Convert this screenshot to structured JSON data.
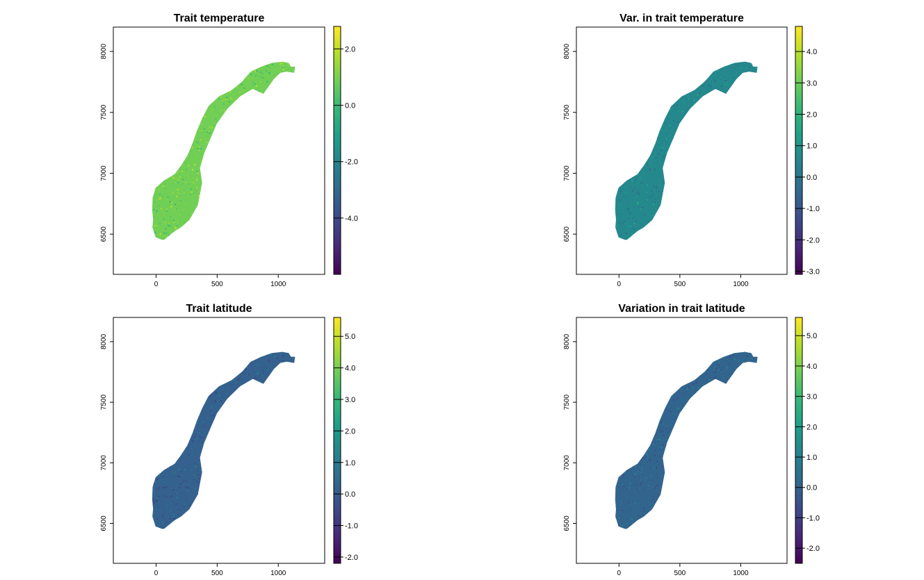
{
  "figure": {
    "viridis": [
      "#440154",
      "#482878",
      "#3e4a89",
      "#31688e",
      "#26828e",
      "#1f9e89",
      "#35b779",
      "#6ece58",
      "#b5de2b",
      "#fde725"
    ]
  },
  "chart_data": [
    {
      "type": "heatmap",
      "title": "Trait temperature",
      "xlabel": "",
      "ylabel": "",
      "xlim": [
        -350,
        1380
      ],
      "ylim": [
        6170,
        8200
      ],
      "x_ticks": [
        "0",
        "500",
        "1000"
      ],
      "y_ticks": [
        "6500",
        "7000",
        "7500",
        "8000"
      ],
      "colorbar": {
        "range": [
          -6.0,
          2.8
        ],
        "ticks": [
          "2.0",
          "0.0",
          "-2.0",
          "-4.0"
        ],
        "tick_values": [
          2,
          0,
          -2,
          -4
        ]
      },
      "dominant_value": 0.9
    },
    {
      "type": "heatmap",
      "title": "Var. in trait temperature",
      "xlabel": "",
      "ylabel": "",
      "xlim": [
        -350,
        1380
      ],
      "ylim": [
        6170,
        8200
      ],
      "x_ticks": [
        "0",
        "500",
        "1000"
      ],
      "y_ticks": [
        "6500",
        "7000",
        "7500",
        "8000"
      ],
      "colorbar": {
        "range": [
          -3.1,
          4.8
        ],
        "ticks": [
          "4.0",
          "3.0",
          "2.0",
          "1.0",
          "0.0",
          "-1.0",
          "-2.0",
          "-3.0"
        ],
        "tick_values": [
          4,
          3,
          2,
          1,
          0,
          -1,
          -2,
          -3
        ]
      },
      "dominant_value": 0.6
    },
    {
      "type": "heatmap",
      "title": "Trait latitude",
      "xlabel": "",
      "ylabel": "",
      "xlim": [
        -350,
        1380
      ],
      "ylim": [
        6170,
        8200
      ],
      "x_ticks": [
        "0",
        "500",
        "1000"
      ],
      "y_ticks": [
        "6500",
        "7000",
        "7500",
        "8000"
      ],
      "colorbar": {
        "range": [
          -2.2,
          5.6
        ],
        "ticks": [
          "5.0",
          "4.0",
          "3.0",
          "2.0",
          "1.0",
          "0.0",
          "-1.0",
          "-2.0"
        ],
        "tick_values": [
          5,
          4,
          3,
          2,
          1,
          0,
          -1,
          -2
        ]
      },
      "dominant_value": 0.2
    },
    {
      "type": "heatmap",
      "title": "Variation in trait latitude",
      "xlabel": "",
      "ylabel": "",
      "xlim": [
        -350,
        1380
      ],
      "ylim": [
        6170,
        8200
      ],
      "x_ticks": [
        "0",
        "500",
        "1000"
      ],
      "y_ticks": [
        "6500",
        "7000",
        "7500",
        "8000"
      ],
      "colorbar": {
        "range": [
          -2.5,
          5.6
        ],
        "ticks": [
          "5.0",
          "4.0",
          "3.0",
          "2.0",
          "1.0",
          "0.0",
          "-1.0",
          "-2.0"
        ],
        "tick_values": [
          5,
          4,
          3,
          2,
          1,
          0,
          -1,
          -2
        ]
      },
      "dominant_value": 0.1
    }
  ]
}
